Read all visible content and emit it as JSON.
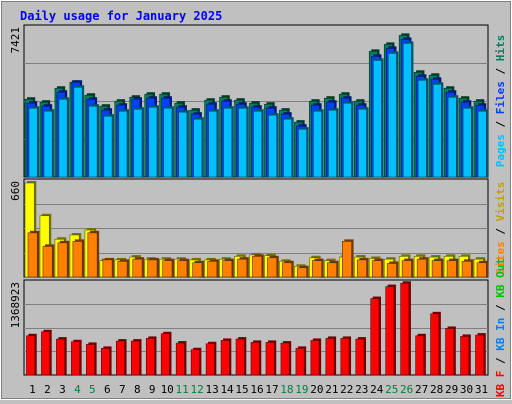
{
  "title": "Daily usage for January 2025",
  "colors": {
    "hits": "#00805c",
    "files": "#0040ff",
    "pages": "#00c0ff",
    "visits": "#ffff00",
    "sites": "#ff8000",
    "kb_f": "#ff0000",
    "kb_in": "#0080ff",
    "kb_out": "#00c000",
    "weekend_day": "#008040",
    "weekday": "#000000",
    "title": "#0000ff",
    "plot_bg": "#c0c0c0"
  },
  "chart_data": [
    {
      "type": "bar",
      "panel": "hits-files-pages",
      "categories": [
        "1",
        "2",
        "3",
        "4",
        "5",
        "6",
        "7",
        "8",
        "9",
        "10",
        "11",
        "12",
        "13",
        "14",
        "15",
        "16",
        "17",
        "18",
        "19",
        "20",
        "21",
        "22",
        "23",
        "24",
        "25",
        "26",
        "27",
        "28",
        "29",
        "30",
        "31"
      ],
      "weekend_days": [
        "4",
        "5",
        "11",
        "12",
        "18",
        "19",
        "25",
        "26"
      ],
      "y_max_label": "7421",
      "ylim": [
        0,
        7421
      ],
      "legend": [
        "Pages",
        "Files",
        "Hits"
      ],
      "series": [
        {
          "name": "Hits",
          "values": [
            3900,
            3750,
            4450,
            4750,
            4100,
            3550,
            3800,
            4000,
            4150,
            4150,
            3700,
            3350,
            3850,
            4000,
            3850,
            3700,
            3650,
            3350,
            2750,
            3800,
            3950,
            4150,
            3800,
            6300,
            6650,
            7100,
            5250,
            5100,
            4450,
            3950,
            3800
          ]
        },
        {
          "name": "Files",
          "values": [
            3700,
            3550,
            4250,
            4750,
            3900,
            3350,
            3600,
            3900,
            3950,
            3950,
            3500,
            3150,
            3650,
            3800,
            3650,
            3500,
            3450,
            3150,
            2550,
            3600,
            3750,
            3950,
            3600,
            6050,
            6450,
            6900,
            5050,
            4900,
            4250,
            3750,
            3600
          ]
        },
        {
          "name": "Pages",
          "values": [
            3450,
            3300,
            3900,
            4500,
            3550,
            3050,
            3300,
            3400,
            3500,
            3450,
            3250,
            2900,
            3300,
            3450,
            3450,
            3300,
            3100,
            2900,
            2400,
            3300,
            3350,
            3700,
            3400,
            5850,
            6200,
            6700,
            4850,
            4650,
            4000,
            3450,
            3300
          ]
        }
      ]
    },
    {
      "type": "bar",
      "panel": "visits-sites",
      "categories": [
        "1",
        "2",
        "3",
        "4",
        "5",
        "6",
        "7",
        "8",
        "9",
        "10",
        "11",
        "12",
        "13",
        "14",
        "15",
        "16",
        "17",
        "18",
        "19",
        "20",
        "21",
        "22",
        "23",
        "24",
        "25",
        "26",
        "27",
        "28",
        "29",
        "30",
        "31"
      ],
      "y_max_label": "660",
      "ylim": [
        0,
        660
      ],
      "legend": [
        "Sites",
        "Visits"
      ],
      "series": [
        {
          "name": "Visits",
          "values": [
            660,
            430,
            265,
            295,
            330,
            115,
            120,
            140,
            125,
            125,
            125,
            120,
            120,
            125,
            145,
            155,
            150,
            110,
            75,
            135,
            115,
            140,
            140,
            130,
            125,
            145,
            145,
            140,
            145,
            145,
            125
          ]
        },
        {
          "name": "Sites",
          "values": [
            310,
            215,
            240,
            250,
            310,
            120,
            110,
            125,
            120,
            115,
            115,
            100,
            110,
            115,
            125,
            145,
            135,
            100,
            65,
            115,
            100,
            250,
            120,
            115,
            95,
            115,
            125,
            115,
            115,
            110,
            100
          ]
        }
      ]
    },
    {
      "type": "bar",
      "panel": "kbytes",
      "categories": [
        "1",
        "2",
        "3",
        "4",
        "5",
        "6",
        "7",
        "8",
        "9",
        "10",
        "11",
        "12",
        "13",
        "14",
        "15",
        "16",
        "17",
        "18",
        "19",
        "20",
        "21",
        "22",
        "23",
        "24",
        "25",
        "26",
        "27",
        "28",
        "29",
        "30",
        "31"
      ],
      "y_max_label": "1368923",
      "ylim": [
        0,
        1368923
      ],
      "legend": [
        "KB F",
        "KB In",
        "KB Out"
      ],
      "series": [
        {
          "name": "KB F",
          "values": [
            590000,
            650000,
            540000,
            500000,
            460000,
            400000,
            510000,
            510000,
            550000,
            620000,
            480000,
            380000,
            470000,
            520000,
            540000,
            490000,
            490000,
            480000,
            400000,
            520000,
            550000,
            550000,
            540000,
            1150000,
            1330000,
            1380000,
            590000,
            920000,
            700000,
            580000,
            600000
          ]
        }
      ]
    }
  ],
  "axes": {
    "x_labels": [
      "1",
      "2",
      "3",
      "4",
      "5",
      "6",
      "7",
      "8",
      "9",
      "10",
      "11",
      "12",
      "13",
      "14",
      "15",
      "16",
      "17",
      "18",
      "19",
      "20",
      "21",
      "22",
      "23",
      "24",
      "25",
      "26",
      "27",
      "28",
      "29",
      "30",
      "31"
    ]
  }
}
